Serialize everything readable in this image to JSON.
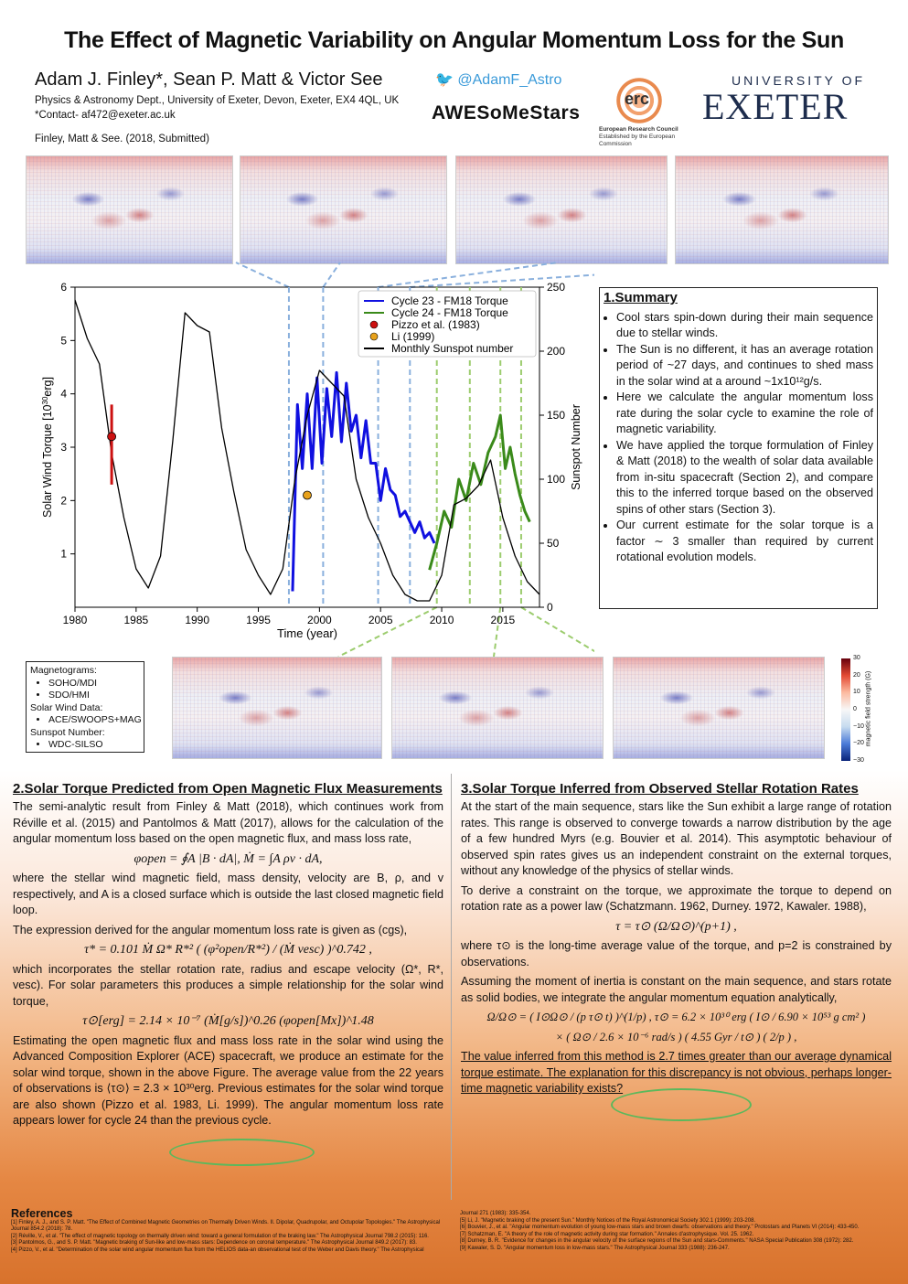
{
  "header": {
    "title": "The Effect of Magnetic Variability on Angular Momentum Loss for the Sun",
    "authors": "Adam J. Finley*, Sean P. Matt & Victor See",
    "affiliation": "Physics & Astronomy Dept., University of Exeter, Devon, Exeter, EX4 4QL, UK",
    "contact": "*Contact- af472@exeter.ac.uk",
    "citation": "Finley, Matt & See. (2018, Submitted)",
    "twitter": "@AdamF_Astro",
    "awesome": "AWESoMeStars",
    "erc_logo": "erc",
    "erc_sub": "European Research Council",
    "erc_sub2": "Established by the European Commission",
    "uni_top": "UNIVERSITY OF",
    "uni_main": "EXETER"
  },
  "chart_data": {
    "type": "line",
    "xlabel": "Time (year)",
    "ylabel": "Solar Wind Torque [10^30erg]",
    "y2label": "Sunspot Number",
    "xlim": [
      1980,
      2018
    ],
    "ylim": [
      0,
      6
    ],
    "y2lim": [
      0,
      250
    ],
    "xticks": [
      1980,
      1985,
      1990,
      1995,
      2000,
      2005,
      2010,
      2015
    ],
    "yticks": [
      1,
      2,
      3,
      4,
      5,
      6
    ],
    "y2ticks": [
      0,
      50,
      100,
      150,
      200,
      250
    ],
    "legend_position": "top-right",
    "legend": [
      "Cycle 23 - FM18 Torque",
      "Cycle 24 - FM18 Torque",
      "Pizzo et al. (1983)",
      "Li (1999)",
      "Monthly Sunspot number"
    ],
    "series": [
      {
        "name": "Cycle 23 - FM18 Torque",
        "color": "#1010e0",
        "x": [
          1997.8,
          1998.2,
          1998.6,
          1999.0,
          1999.4,
          1999.8,
          2000.2,
          2000.6,
          2001.0,
          2001.4,
          2001.8,
          2002.2,
          2002.6,
          2003.0,
          2003.4,
          2003.8,
          2004.2,
          2004.6,
          2005.0,
          2005.4,
          2005.8,
          2006.2,
          2006.6,
          2007.0,
          2007.4,
          2007.8,
          2008.2,
          2008.6,
          2009.0,
          2009.4
        ],
        "values": [
          0.3,
          3.8,
          2.6,
          4.0,
          2.6,
          4.3,
          2.7,
          4.1,
          3.2,
          4.4,
          3.1,
          4.2,
          3.3,
          3.6,
          2.8,
          3.5,
          2.7,
          2.7,
          2.0,
          2.6,
          2.2,
          2.1,
          1.7,
          1.8,
          1.6,
          1.4,
          1.6,
          1.3,
          1.4,
          1.2
        ]
      },
      {
        "name": "Cycle 24 - FM18 Torque",
        "color": "#3a8a1a",
        "x": [
          2009.0,
          2009.6,
          2010.2,
          2010.8,
          2011.4,
          2012.0,
          2012.6,
          2013.2,
          2013.8,
          2014.4,
          2014.8,
          2015.2,
          2015.6,
          2016.0,
          2016.4,
          2016.8,
          2017.2
        ],
        "values": [
          0.7,
          1.2,
          1.8,
          1.5,
          2.4,
          2.0,
          2.7,
          2.3,
          2.9,
          3.2,
          3.6,
          2.6,
          3.0,
          2.5,
          2.1,
          1.8,
          1.6
        ]
      },
      {
        "name": "Monthly Sunspot number",
        "color": "#000000",
        "axis": "y2",
        "x": [
          1980,
          1981,
          1982,
          1983,
          1984,
          1985,
          1986,
          1987,
          1988,
          1989,
          1990,
          1991,
          1992,
          1993,
          1994,
          1995,
          1996,
          1997,
          1998,
          1999,
          2000,
          2001,
          2002,
          2003,
          2004,
          2005,
          2006,
          2007,
          2008,
          2009,
          2010,
          2011,
          2012,
          2013,
          2014,
          2015,
          2016,
          2017,
          2018
        ],
        "values": [
          240,
          210,
          190,
          120,
          70,
          30,
          15,
          40,
          130,
          230,
          220,
          215,
          140,
          90,
          45,
          25,
          10,
          30,
          100,
          150,
          185,
          175,
          165,
          100,
          70,
          50,
          25,
          10,
          5,
          5,
          25,
          80,
          85,
          95,
          115,
          70,
          40,
          20,
          10
        ]
      }
    ],
    "points": [
      {
        "name": "Pizzo et al. (1983)",
        "color": "#cc1111",
        "x": 1983,
        "y": 3.2,
        "err": [
          2.3,
          3.8
        ]
      },
      {
        "name": "Li (1999)",
        "color": "#e8a21c",
        "x": 1999,
        "y": 2.1
      }
    ]
  },
  "summary": {
    "title": "1.Summary",
    "items": [
      "Cool stars spin-down during their main sequence due to stellar winds.",
      "The Sun is no different, it has an average rotation period of ~27 days, and continues to shed mass in the solar wind at a around ~1x10¹²g/s.",
      "Here we calculate the angular momentum loss rate during the solar cycle to examine the role of magnetic variability.",
      "We have applied the torque formulation of Finley & Matt (2018) to the wealth of solar data available from in-situ spacecraft (Section 2), and compare this to the inferred torque based on the observed spins of other stars (Section 3).",
      "Our current estimate for the solar torque is a factor ∼ 3 smaller than required by current rotational evolution models."
    ]
  },
  "datasources": {
    "mag_label": "Magnetograms:",
    "mag": [
      "SOHO/MDI",
      "SDO/HMI"
    ],
    "sw_label": "Solar Wind Data:",
    "sw": [
      "ACE/SWOOPS+MAG"
    ],
    "ss_label": "Sunspot Number:",
    "ss": [
      "WDC-SILSO"
    ]
  },
  "colorbar": {
    "ticks": [
      "30",
      "20",
      "10",
      "0",
      "−10",
      "−20",
      "−30"
    ],
    "label": "magnetic field strength (G)"
  },
  "section2": {
    "title": "2.Solar Torque Predicted from Open Magnetic Flux Measurements",
    "p1": "The semi-analytic result from Finley & Matt (2018), which continues work from Réville et al. (2015) and Pantolmos & Matt (2017), allows for the calculation of the angular momentum loss based on the open magnetic flux, and mass loss rate,",
    "eq1": "φopen = ∮A |B · dA|,        Ṁ = ∫A ρv · dA,",
    "p2": "where the stellar wind magnetic field, mass density, velocity are B, ρ, and v respectively, and A is a closed surface which is outside the last closed magnetic field loop.",
    "p3": "The expression derived for the angular momentum loss rate is given as (cgs),",
    "eq2": "τ* = 0.101 Ṁ Ω* R*² ( (φ²open/R*²) / (Ṁ vesc) )^0.742 ,",
    "p4": "which incorporates the stellar rotation rate, radius and escape velocity (Ω*, R*, vesc). For solar parameters this produces a simple relationship for the solar wind torque,",
    "eq3": "τ⊙[erg] = 2.14 × 10⁻⁷ (Ṁ[g/s])^0.26 (φopen[Mx])^1.48",
    "p5": "Estimating the open magnetic flux and mass loss rate in the solar wind using the Advanced Composition Explorer (ACE) spacecraft, we produce an estimate for the solar wind torque, shown in the above Figure. The average value from the 22 years of observations is ⟨τ⊙⟩ = 2.3 × 10³⁰erg. Previous estimates for the solar wind torque are also shown (Pizzo et al. 1983, Li. 1999). The angular momentum loss rate appears lower for cycle 24 than the previous cycle."
  },
  "section3": {
    "title": "3.Solar Torque Inferred from Observed Stellar Rotation Rates",
    "p1": "At the start of the main sequence, stars like the Sun exhibit a large range of rotation rates. This range is observed to converge towards a narrow distribution by the age of a few hundred Myrs (e.g. Bouvier et al. 2014). This asymptotic behaviour of observed spin rates gives us an independent constraint on the external torques, without any knowledge of the physics of stellar winds.",
    "p2": "To derive a constraint on the torque, we approximate the torque to depend on rotation rate as a power law (Schatzmann. 1962, Durney. 1972, Kawaler. 1988),",
    "eq1": "τ = τ⊙ (Ω/Ω⊙)^(p+1) ,",
    "p3": "where τ⊙ is the long-time average value of the torque, and p=2 is constrained by observations.",
    "p4": "Assuming the moment of inertia is constant on the main sequence, and stars rotate as solid bodies, we integrate the angular momentum equation analytically,",
    "eq2": "Ω/Ω⊙ = ( I⊙Ω⊙ / (p τ⊙ t) )^(1/p) ,      τ⊙ = 6.2 × 10³⁰ erg ( I⊙ / 6.90 × 10⁵³ g cm² )",
    "eq3": "× ( Ω⊙ / 2.6 × 10⁻⁶ rad/s ) ( 4.55 Gyr / t⊙ ) ( 2/p ) ,",
    "p5": "The value inferred from this method is 2.7 times greater than our average dynamical torque estimate. The explanation for this discrepancy is not obvious, perhaps longer-time magnetic variability exists?"
  },
  "references": {
    "title": "References",
    "left": [
      "[1] Finley, A. J., and S. P. Matt. \"The Effect of Combined Magnetic Geometries on Thermally Driven Winds. II. Dipolar, Quadrupolar, and Octupolar Topologies.\" The Astrophysical Journal 854.2 (2018): 78.",
      "[2] Réville, V., et al. \"The effect of magnetic topology on thermally driven wind: toward a general formulation of the braking law.\" The Astrophysical Journal 798.2 (2015): 116.",
      "[3] Pantolmos, G., and S. P. Matt. \"Magnetic braking of Sun-like and low-mass stars: Dependence on coronal temperature.\" The Astrophysical Journal 849.2 (2017): 83.",
      "[4] Pizzo, V., et al. \"Determination of the solar wind angular momentum flux from the HELIOS data-an observational test of the Weber and Davis theory.\" The Astrophysical"
    ],
    "right": [
      "Journal 271 (1983): 335-354.",
      "[5] Li, J. \"Magnetic braking of the present Sun.\" Monthly Notices of the Royal Astronomical Society 302.1 (1999): 203-208.",
      "[6] Bouvier, J., et al. \"Angular momentum evolution of young low-mass stars and brown dwarfs: observations and theory.\" Protostars and Planets VI (2014): 433-450.",
      "[7] Schatzman, E. \"A theory of the role of magnetic activity during star formation.\" Annales d'astrophysique. Vol. 25. 1962.",
      "[8] Durney, B. R. \"Evidence for changes in the angular velocity of the surface regions of the Sun and stars-Comments.\" NASA Special Publication 308 (1972): 282.",
      "[9] Kawaler, S. D. \"Angular momentum loss in low-mass stars.\" The Astrophysical Journal 333 (1988): 236-247."
    ]
  }
}
